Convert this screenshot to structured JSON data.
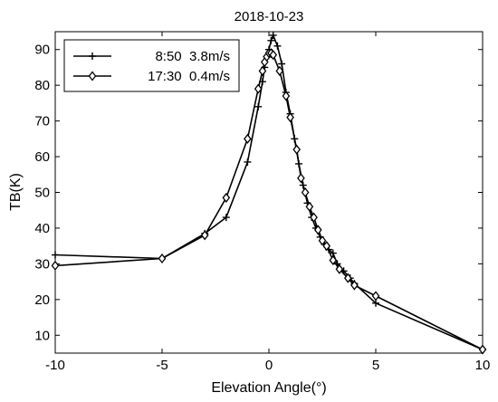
{
  "chart_data": {
    "type": "line",
    "title": "2018-10-23",
    "xlabel": "Elevation Angle(°)",
    "ylabel": "TB(K)",
    "xlim": [
      -10,
      10
    ],
    "ylim": [
      5,
      95
    ],
    "xticks": [
      -10,
      -5,
      0,
      5,
      10
    ],
    "yticks": [
      10,
      20,
      30,
      40,
      50,
      60,
      70,
      80,
      90
    ],
    "grid": false,
    "legend_position": "top-left",
    "series": [
      {
        "name": "8:50  3.8m/s",
        "marker": "plus",
        "color": "#000000",
        "points": [
          [
            -10,
            32.5
          ],
          [
            -5,
            31.5
          ],
          [
            -3,
            38.5
          ],
          [
            -2,
            43
          ],
          [
            -1,
            58.5
          ],
          [
            -0.5,
            74
          ],
          [
            -0.3,
            81
          ],
          [
            -0.2,
            85
          ],
          [
            -0.1,
            88
          ],
          [
            0,
            90
          ],
          [
            0.1,
            92.5
          ],
          [
            0.2,
            94
          ],
          [
            0.4,
            91
          ],
          [
            0.6,
            86
          ],
          [
            0.8,
            78
          ],
          [
            1,
            72
          ],
          [
            1.2,
            65
          ],
          [
            1.4,
            58
          ],
          [
            1.6,
            52
          ],
          [
            1.8,
            47
          ],
          [
            2,
            43
          ],
          [
            2.2,
            40
          ],
          [
            2.4,
            37.5
          ],
          [
            2.6,
            35.5
          ],
          [
            2.8,
            34
          ],
          [
            3,
            33
          ],
          [
            3.2,
            30
          ],
          [
            3.5,
            28
          ],
          [
            3.8,
            26
          ],
          [
            4,
            24.5
          ],
          [
            5,
            19
          ],
          [
            10,
            6
          ]
        ]
      },
      {
        "name": "17:30  0.4m/s",
        "marker": "diamond",
        "color": "#000000",
        "points": [
          [
            -10,
            29.5
          ],
          [
            -5,
            31.5
          ],
          [
            -3,
            38
          ],
          [
            -2,
            48.5
          ],
          [
            -1,
            65
          ],
          [
            -0.5,
            79
          ],
          [
            -0.3,
            84
          ],
          [
            -0.2,
            86.5
          ],
          [
            -0.1,
            88
          ],
          [
            0,
            89
          ],
          [
            0.1,
            89
          ],
          [
            0.2,
            88.5
          ],
          [
            0.5,
            84
          ],
          [
            0.8,
            77
          ],
          [
            1,
            71
          ],
          [
            1.3,
            62
          ],
          [
            1.5,
            54
          ],
          [
            1.7,
            50
          ],
          [
            1.9,
            46
          ],
          [
            2.1,
            43
          ],
          [
            2.3,
            39.5
          ],
          [
            2.5,
            36.5
          ],
          [
            2.7,
            35
          ],
          [
            3,
            31
          ],
          [
            3.3,
            28.5
          ],
          [
            3.7,
            26
          ],
          [
            4,
            24
          ],
          [
            5,
            21
          ],
          [
            10,
            6
          ]
        ]
      }
    ]
  }
}
